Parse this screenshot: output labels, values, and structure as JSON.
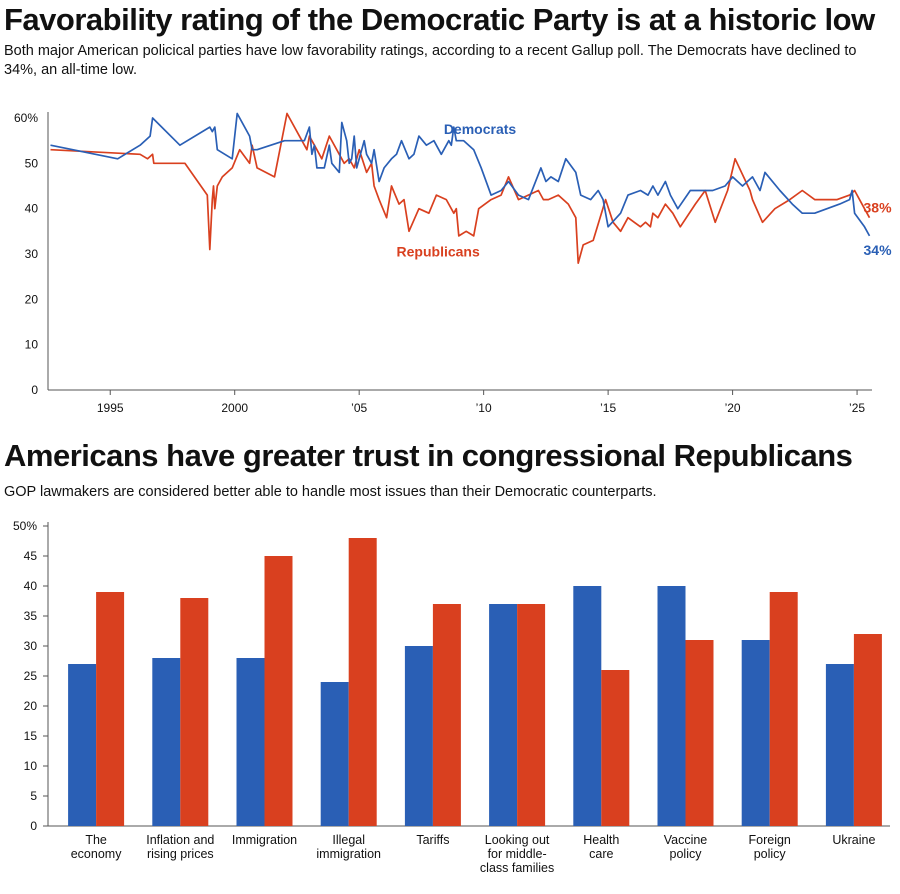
{
  "page": {
    "title1": "Favorability rating of the Democratic Party is at a historic low",
    "subtitle1": "Both major American policical parties have low favorability ratings, according to a recent Gallup poll. The Democrats have declined to 34%, an all-time low.",
    "title2": "Americans have greater trust in congressional Republicans",
    "subtitle2": "GOP lawmakers are considered better able to handle most issues than their Democratic counterparts."
  },
  "colors": {
    "democrats": "#2a5fb5",
    "republicans": "#d9401f",
    "axis": "#555555"
  },
  "chart_data": [
    {
      "type": "line",
      "ylim": [
        0,
        60
      ],
      "xlim": [
        1992.5,
        2025.6
      ],
      "y_ticks": [
        "0",
        "10",
        "20",
        "30",
        "40",
        "50",
        "60%"
      ],
      "x_ticks": [
        {
          "value": 1995,
          "label": "1995"
        },
        {
          "value": 2000,
          "label": "2000"
        },
        {
          "value": 2005,
          "label": "’05"
        },
        {
          "value": 2010,
          "label": "’10"
        },
        {
          "value": 2015,
          "label": "’15"
        },
        {
          "value": 2020,
          "label": "’20"
        },
        {
          "value": 2025,
          "label": "’25"
        }
      ],
      "series": [
        {
          "name": "Democrats",
          "end_label": "34%",
          "points": [
            [
              1992.6,
              54
            ],
            [
              1995.3,
              51
            ],
            [
              1996.2,
              54
            ],
            [
              1996.6,
              56
            ],
            [
              1996.7,
              60
            ],
            [
              1997.8,
              54
            ],
            [
              1999.0,
              58
            ],
            [
              1999.1,
              57
            ],
            [
              1999.2,
              58
            ],
            [
              1999.3,
              53
            ],
            [
              1999.9,
              51
            ],
            [
              2000.1,
              61
            ],
            [
              2000.6,
              56
            ],
            [
              2000.7,
              53
            ],
            [
              2000.9,
              53
            ],
            [
              2002.0,
              55
            ],
            [
              2002.8,
              55
            ],
            [
              2003.0,
              58
            ],
            [
              2003.1,
              52
            ],
            [
              2003.2,
              54
            ],
            [
              2003.3,
              49
            ],
            [
              2003.6,
              49
            ],
            [
              2003.8,
              54
            ],
            [
              2003.9,
              50
            ],
            [
              2004.2,
              48
            ],
            [
              2004.3,
              59
            ],
            [
              2004.5,
              55
            ],
            [
              2004.6,
              50
            ],
            [
              2004.7,
              51
            ],
            [
              2004.8,
              56
            ],
            [
              2004.9,
              49
            ],
            [
              2005.2,
              55
            ],
            [
              2005.3,
              52
            ],
            [
              2005.5,
              50
            ],
            [
              2005.6,
              53
            ],
            [
              2005.8,
              46
            ],
            [
              2006.0,
              49
            ],
            [
              2006.3,
              51
            ],
            [
              2006.5,
              52
            ],
            [
              2006.7,
              55
            ],
            [
              2007.0,
              51
            ],
            [
              2007.2,
              52
            ],
            [
              2007.4,
              56
            ],
            [
              2007.7,
              54
            ],
            [
              2008.0,
              55
            ],
            [
              2008.3,
              52
            ],
            [
              2008.6,
              55
            ],
            [
              2008.7,
              54
            ],
            [
              2008.8,
              58
            ],
            [
              2008.9,
              55
            ],
            [
              2009.2,
              55
            ],
            [
              2009.6,
              53
            ],
            [
              2009.9,
              49
            ],
            [
              2010.3,
              43
            ],
            [
              2010.7,
              44
            ],
            [
              2011.0,
              46
            ],
            [
              2011.4,
              43
            ],
            [
              2011.8,
              42
            ],
            [
              2012.3,
              49
            ],
            [
              2012.5,
              46
            ],
            [
              2012.7,
              47
            ],
            [
              2013.0,
              46
            ],
            [
              2013.3,
              51
            ],
            [
              2013.7,
              48
            ],
            [
              2013.9,
              43
            ],
            [
              2014.3,
              42
            ],
            [
              2014.6,
              44
            ],
            [
              2014.8,
              42
            ],
            [
              2015.0,
              36
            ],
            [
              2015.5,
              39
            ],
            [
              2015.8,
              43
            ],
            [
              2016.3,
              44
            ],
            [
              2016.6,
              43
            ],
            [
              2016.8,
              45
            ],
            [
              2017.0,
              43
            ],
            [
              2017.3,
              46
            ],
            [
              2017.5,
              43
            ],
            [
              2017.8,
              40
            ],
            [
              2018.3,
              44
            ],
            [
              2018.8,
              44
            ],
            [
              2019.2,
              44
            ],
            [
              2019.7,
              45
            ],
            [
              2020.0,
              47
            ],
            [
              2020.4,
              45
            ],
            [
              2020.8,
              47
            ],
            [
              2021.1,
              44
            ],
            [
              2021.3,
              48
            ],
            [
              2021.9,
              44
            ],
            [
              2022.4,
              41
            ],
            [
              2022.8,
              39
            ],
            [
              2023.3,
              39
            ],
            [
              2024.3,
              41
            ],
            [
              2024.7,
              42
            ],
            [
              2024.8,
              44
            ],
            [
              2024.9,
              39
            ],
            [
              2025.3,
              36
            ],
            [
              2025.5,
              34
            ]
          ]
        },
        {
          "name": "Republicans",
          "end_label": "38%",
          "points": [
            [
              1992.6,
              53
            ],
            [
              1996.2,
              52
            ],
            [
              1996.5,
              51
            ],
            [
              1996.7,
              52
            ],
            [
              1996.75,
              50
            ],
            [
              1998.0,
              50
            ],
            [
              1998.9,
              43
            ],
            [
              1999.0,
              31
            ],
            [
              1999.1,
              42
            ],
            [
              1999.15,
              45
            ],
            [
              1999.2,
              40
            ],
            [
              1999.3,
              45
            ],
            [
              1999.5,
              47
            ],
            [
              1999.9,
              49
            ],
            [
              2000.2,
              53
            ],
            [
              2000.6,
              50
            ],
            [
              2000.7,
              54
            ],
            [
              2000.9,
              49
            ],
            [
              2001.6,
              47
            ],
            [
              2002.1,
              61
            ],
            [
              2002.9,
              53
            ],
            [
              2003.0,
              56
            ],
            [
              2003.3,
              53
            ],
            [
              2003.5,
              51
            ],
            [
              2003.8,
              56
            ],
            [
              2004.4,
              50
            ],
            [
              2004.6,
              51
            ],
            [
              2004.8,
              49
            ],
            [
              2005.0,
              53
            ],
            [
              2005.3,
              48
            ],
            [
              2005.5,
              50
            ],
            [
              2005.6,
              45
            ],
            [
              2005.8,
              42
            ],
            [
              2006.1,
              38
            ],
            [
              2006.3,
              45
            ],
            [
              2006.6,
              41
            ],
            [
              2006.8,
              42
            ],
            [
              2007.0,
              35
            ],
            [
              2007.4,
              40
            ],
            [
              2007.8,
              39
            ],
            [
              2008.1,
              43
            ],
            [
              2008.5,
              42
            ],
            [
              2008.8,
              39
            ],
            [
              2008.9,
              40
            ],
            [
              2009.0,
              34
            ],
            [
              2009.3,
              35
            ],
            [
              2009.6,
              34
            ],
            [
              2009.8,
              40
            ],
            [
              2010.3,
              42
            ],
            [
              2010.7,
              43
            ],
            [
              2011.0,
              47
            ],
            [
              2011.4,
              42
            ],
            [
              2012.2,
              44
            ],
            [
              2012.4,
              42
            ],
            [
              2012.6,
              42
            ],
            [
              2013.0,
              43
            ],
            [
              2013.4,
              41
            ],
            [
              2013.7,
              38
            ],
            [
              2013.8,
              28
            ],
            [
              2014.0,
              32
            ],
            [
              2014.4,
              33
            ],
            [
              2014.9,
              42
            ],
            [
              2015.2,
              37
            ],
            [
              2015.5,
              35
            ],
            [
              2015.8,
              38
            ],
            [
              2016.3,
              36
            ],
            [
              2016.5,
              37
            ],
            [
              2016.7,
              36
            ],
            [
              2016.8,
              39
            ],
            [
              2017.0,
              38
            ],
            [
              2017.3,
              41
            ],
            [
              2017.6,
              39
            ],
            [
              2017.9,
              36
            ],
            [
              2018.5,
              41
            ],
            [
              2018.9,
              44
            ],
            [
              2019.3,
              37
            ],
            [
              2019.8,
              44
            ],
            [
              2020.1,
              51
            ],
            [
              2020.7,
              44
            ],
            [
              2020.8,
              42
            ],
            [
              2021.2,
              37
            ],
            [
              2021.7,
              40
            ],
            [
              2022.3,
              42
            ],
            [
              2022.8,
              44
            ],
            [
              2023.3,
              42
            ],
            [
              2024.2,
              42
            ],
            [
              2024.7,
              43
            ],
            [
              2024.9,
              44
            ],
            [
              2025.3,
              40
            ],
            [
              2025.5,
              38
            ]
          ]
        }
      ]
    },
    {
      "type": "bar",
      "ylim": [
        0,
        50
      ],
      "y_ticks": [
        "0",
        "5",
        "10",
        "15",
        "20",
        "25",
        "30",
        "35",
        "40",
        "45",
        "50%"
      ],
      "categories": [
        {
          "label": [
            "The",
            "economy"
          ]
        },
        {
          "label": [
            "Inflation and",
            "rising prices"
          ]
        },
        {
          "label": [
            "Immigration"
          ]
        },
        {
          "label": [
            "Illegal",
            "immigration"
          ]
        },
        {
          "label": [
            "Tariffs"
          ]
        },
        {
          "label": [
            "Looking out",
            "for middle-",
            "class families"
          ]
        },
        {
          "label": [
            "Health",
            "care"
          ]
        },
        {
          "label": [
            "Vaccine",
            "policy"
          ]
        },
        {
          "label": [
            "Foreign",
            "policy"
          ]
        },
        {
          "label": [
            "Ukraine"
          ]
        }
      ],
      "series": [
        {
          "key": "democrats",
          "values": [
            27,
            28,
            28,
            24,
            30,
            37,
            40,
            40,
            31,
            27
          ]
        },
        {
          "key": "republicans",
          "values": [
            39,
            38,
            45,
            48,
            37,
            37,
            26,
            31,
            39,
            32
          ]
        }
      ]
    }
  ]
}
